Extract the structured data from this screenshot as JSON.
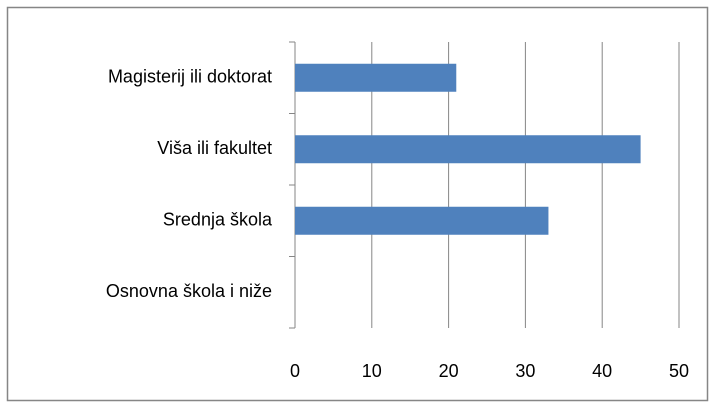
{
  "chart_data": {
    "type": "hbar",
    "categories": [
      "Magisterij ili doktorat",
      "Viša ili fakultet",
      "Srednja škola",
      "Osnovna škola i niže"
    ],
    "values": [
      21,
      45,
      33,
      0
    ],
    "color": "#4f81bd",
    "xlim": [
      0,
      50
    ],
    "xticks": [
      0,
      10,
      20,
      30,
      40,
      50
    ],
    "grid": true
  }
}
